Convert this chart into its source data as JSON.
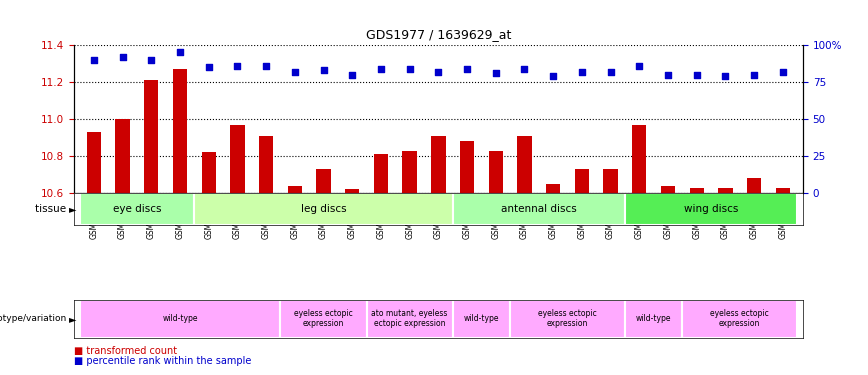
{
  "title": "GDS1977 / 1639629_at",
  "samples": [
    "GSM91570",
    "GSM91585",
    "GSM91609",
    "GSM91616",
    "GSM91617",
    "GSM91618",
    "GSM91619",
    "GSM91478",
    "GSM91479",
    "GSM91480",
    "GSM91472",
    "GSM91473",
    "GSM91474",
    "GSM91484",
    "GSM91491",
    "GSM91515",
    "GSM91475",
    "GSM91476",
    "GSM91477",
    "GSM91620",
    "GSM91621",
    "GSM91622",
    "GSM91481",
    "GSM91482",
    "GSM91483"
  ],
  "red_values": [
    10.93,
    11.0,
    11.21,
    11.27,
    10.82,
    10.97,
    10.91,
    10.64,
    10.73,
    10.62,
    10.81,
    10.83,
    10.91,
    10.88,
    10.83,
    10.91,
    10.65,
    10.73,
    10.73,
    10.97,
    10.64,
    10.63,
    10.63,
    10.68,
    10.63
  ],
  "blue_values": [
    90,
    92,
    90,
    95,
    85,
    86,
    86,
    82,
    83,
    80,
    84,
    84,
    82,
    84,
    81,
    84,
    79,
    82,
    82,
    86,
    80,
    80,
    79,
    80,
    82
  ],
  "ylim_left": [
    10.6,
    11.4
  ],
  "ylim_right": [
    0,
    100
  ],
  "yticks_left": [
    10.6,
    10.8,
    11.0,
    11.2,
    11.4
  ],
  "yticks_right": [
    0,
    25,
    50,
    75,
    100
  ],
  "ytick_labels_right": [
    "0",
    "25",
    "50",
    "75",
    "100%"
  ],
  "tissue_groups": [
    {
      "label": "eye discs",
      "start": 0,
      "end": 4,
      "color": "#aaffaa"
    },
    {
      "label": "leg discs",
      "start": 4,
      "end": 13,
      "color": "#ccffaa"
    },
    {
      "label": "antennal discs",
      "start": 13,
      "end": 19,
      "color": "#aaffaa"
    },
    {
      "label": "wing discs",
      "start": 19,
      "end": 25,
      "color": "#55ee55"
    }
  ],
  "genotype_groups": [
    {
      "label": "wild-type",
      "start": 0,
      "end": 7,
      "color": "#ffaaff"
    },
    {
      "label": "eyeless ectopic\nexpression",
      "start": 7,
      "end": 10,
      "color": "#ffaaff"
    },
    {
      "label": "ato mutant, eyeless\nectopic expression",
      "start": 10,
      "end": 13,
      "color": "#ffaaff"
    },
    {
      "label": "wild-type",
      "start": 13,
      "end": 15,
      "color": "#ffaaff"
    },
    {
      "label": "eyeless ectopic\nexpression",
      "start": 15,
      "end": 19,
      "color": "#ffaaff"
    },
    {
      "label": "wild-type",
      "start": 19,
      "end": 21,
      "color": "#ffaaff"
    },
    {
      "label": "eyeless ectopic\nexpression",
      "start": 21,
      "end": 25,
      "color": "#ffaaff"
    }
  ],
  "bar_color": "#cc0000",
  "dot_color": "#0000cc",
  "left_axis_color": "#cc0000",
  "right_axis_color": "#0000cc",
  "tissue_label": "tissue",
  "geno_label": "genotype/variation",
  "legend_red": "transformed count",
  "legend_blue": "percentile rank within the sample"
}
